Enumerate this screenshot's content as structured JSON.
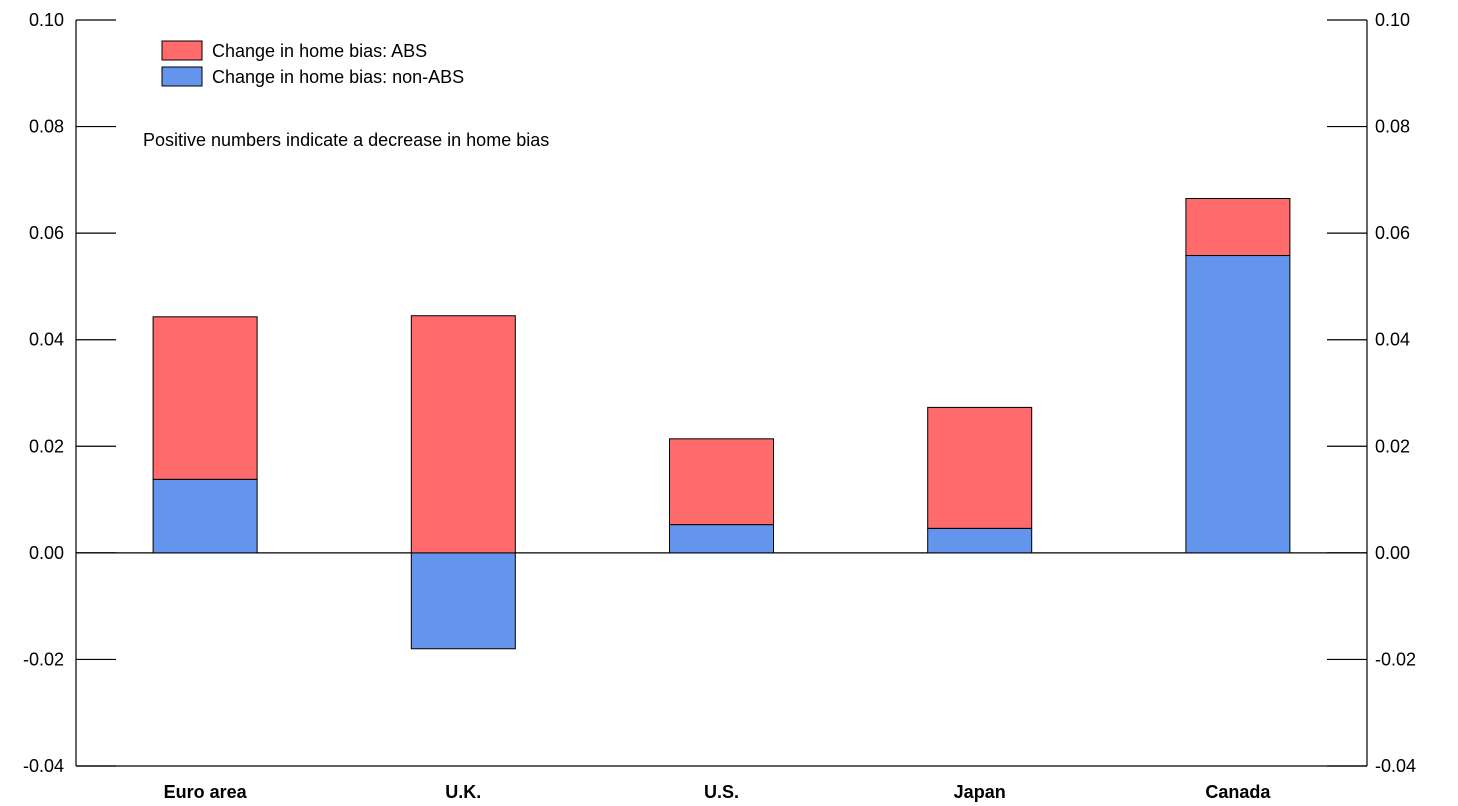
{
  "chart_data": {
    "type": "bar",
    "stacked": true,
    "categories": [
      "Euro area",
      "U.K.",
      "U.S.",
      "Japan",
      "Canada"
    ],
    "series": [
      {
        "name": "Change in home bias: ABS",
        "color": "#ff6a6a",
        "values": [
          0.0305,
          0.0445,
          0.0161,
          0.0227,
          0.0107
        ]
      },
      {
        "name": "Change in home bias: non-ABS",
        "color": "#6495ed",
        "values": [
          0.0138,
          -0.018,
          0.0053,
          0.0046,
          0.0558
        ]
      }
    ],
    "ylim": [
      -0.04,
      0.1
    ],
    "yticks": [
      "0.10",
      "0.08",
      "0.06",
      "0.04",
      "0.02",
      "0.00",
      "-0.02",
      "-0.04"
    ],
    "ytick_values": [
      0.1,
      0.08,
      0.06,
      0.04,
      0.02,
      0.0,
      -0.02,
      -0.04
    ],
    "annotation": "Positive numbers indicate a decrease in home bias",
    "legend_position": "top-left",
    "grid": false
  }
}
